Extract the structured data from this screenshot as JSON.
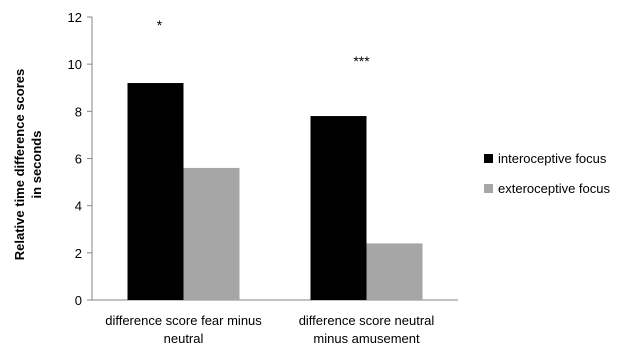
{
  "chart_data": {
    "type": "bar",
    "title": "",
    "xlabel": "",
    "ylabel": "Relative time difference scores in seconds",
    "ylabel_lines": [
      "Relative time difference scores",
      "in seconds"
    ],
    "ylim": [
      0,
      12
    ],
    "yticks": [
      0,
      2,
      4,
      6,
      8,
      10,
      12
    ],
    "grid": false,
    "legend_position": "right",
    "categories": [
      [
        "difference score fear minus",
        "neutral"
      ],
      [
        "difference score neutral",
        "minus amusement"
      ]
    ],
    "series": [
      {
        "name": "interoceptive focus",
        "color": "#000000",
        "values": [
          9.2,
          7.8
        ]
      },
      {
        "name": "exteroceptive focus",
        "color": "#a6a6a6",
        "values": [
          5.6,
          2.4
        ]
      }
    ],
    "annotations": [
      "*",
      "***"
    ]
  }
}
